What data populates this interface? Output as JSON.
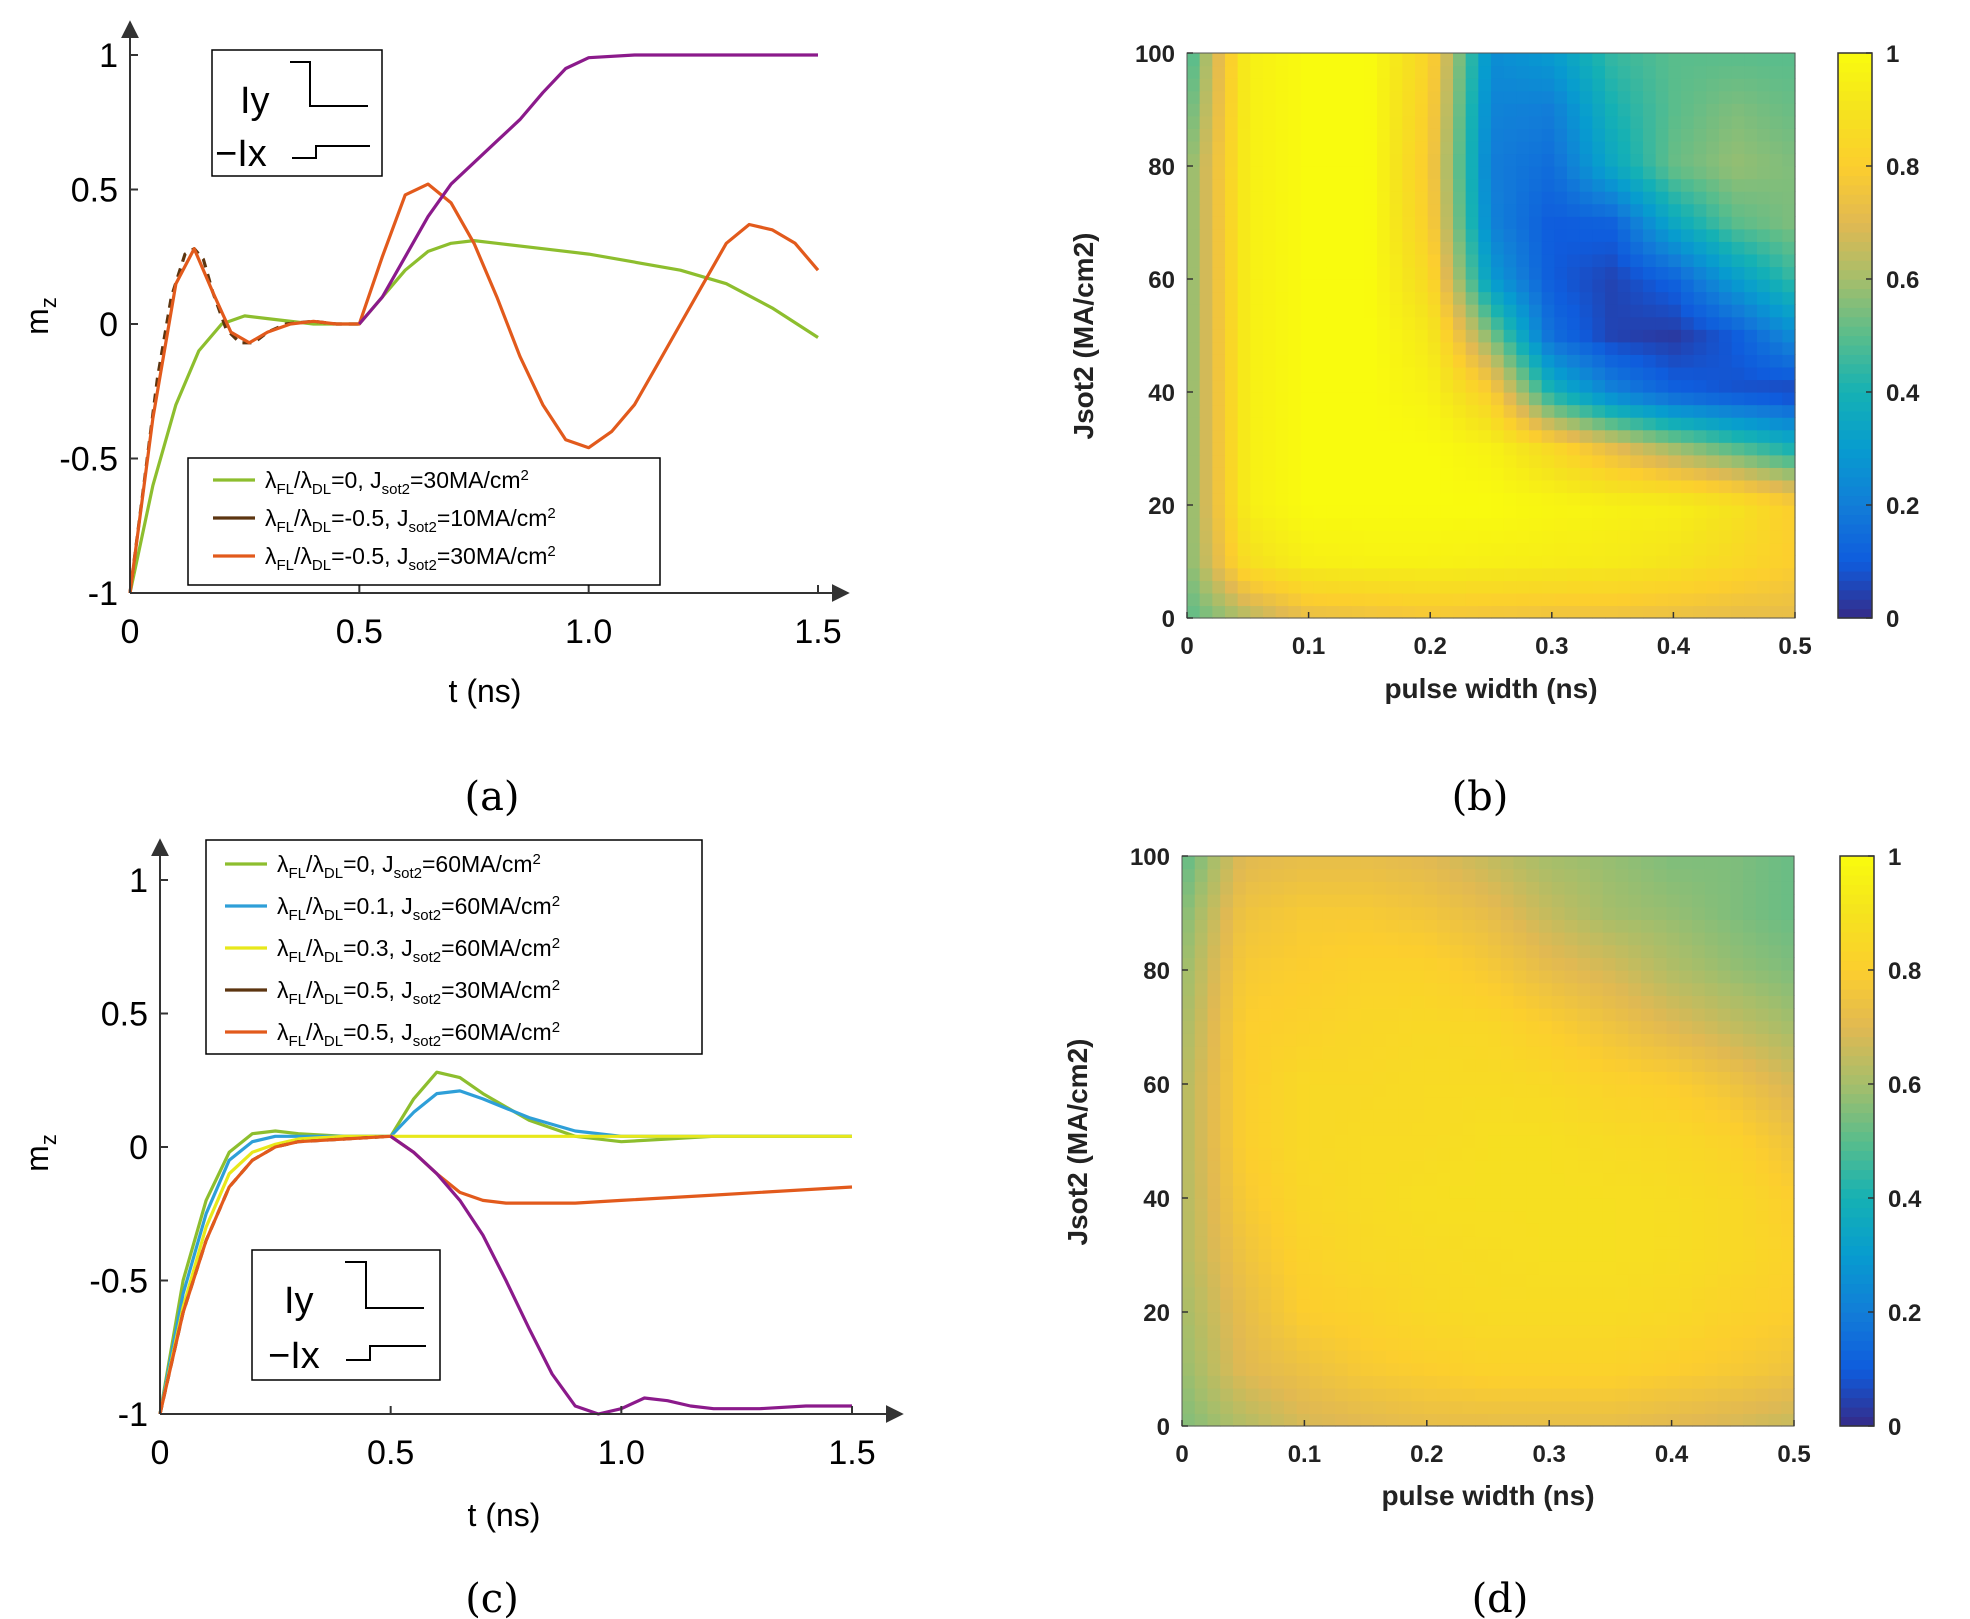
{
  "figure": {
    "panel_labels": [
      "(a)",
      "(b)",
      "(c)",
      "(d)"
    ],
    "inset": {
      "iy": "Iy",
      "ix": "−Ix"
    }
  },
  "chart_data": [
    {
      "id": "a",
      "type": "line",
      "xlabel": "t (ns)",
      "ylabel": "m",
      "ylabel_sub": "z",
      "xlim": [
        0,
        1.5
      ],
      "ylim": [
        -1,
        1
      ],
      "xticks": [
        0,
        0.5,
        1.0,
        1.5
      ],
      "xtick_labels": [
        "0",
        "0.5",
        "1.0",
        "1.5"
      ],
      "yticks": [
        -1,
        -0.5,
        0,
        0.5,
        1
      ],
      "ytick_labels": [
        "-1",
        "-0.5",
        "0",
        "0.5",
        "1"
      ],
      "legend_position": "bottom-center",
      "series": [
        {
          "name": "λFL/λDL=0,      Jsot2=30MA/cm2",
          "legend": true,
          "color": "#8DBE2E",
          "x": [
            0,
            0.05,
            0.1,
            0.15,
            0.2,
            0.25,
            0.3,
            0.4,
            0.5,
            0.55,
            0.6,
            0.65,
            0.7,
            0.75,
            0.8,
            0.9,
            1.0,
            1.1,
            1.2,
            1.3,
            1.4,
            1.5
          ],
          "y": [
            -1,
            -0.6,
            -0.3,
            -0.1,
            0.0,
            0.03,
            0.02,
            0.0,
            0.0,
            0.1,
            0.2,
            0.27,
            0.3,
            0.31,
            0.3,
            0.28,
            0.26,
            0.23,
            0.2,
            0.15,
            0.06,
            -0.05
          ]
        },
        {
          "name": "λFL/λDL=-0.5, Jsot2=10MA/cm2",
          "legend": true,
          "color": "#5C3510",
          "x": [
            0,
            0.03,
            0.06,
            0.09,
            0.12,
            0.14,
            0.16,
            0.18,
            0.21,
            0.24,
            0.27,
            0.3,
            0.34,
            0.4,
            0.45,
            0.5
          ],
          "y": [
            -1,
            -0.6,
            -0.2,
            0.1,
            0.26,
            0.28,
            0.24,
            0.12,
            -0.02,
            -0.07,
            -0.07,
            -0.03,
            0.0,
            0.01,
            0.0,
            0.0
          ]
        },
        {
          "name": "λFL/λDL=-0.5, Jsot2=30MA/cm2",
          "legend": true,
          "color": "#E25A1C",
          "x": [
            0,
            0.05,
            0.1,
            0.14,
            0.18,
            0.22,
            0.26,
            0.3,
            0.35,
            0.4,
            0.45,
            0.5,
            0.55,
            0.6,
            0.65,
            0.7,
            0.75,
            0.8,
            0.85,
            0.9,
            0.95,
            1.0,
            1.05,
            1.1,
            1.15,
            1.2,
            1.25,
            1.3,
            1.35,
            1.4,
            1.45,
            1.5
          ],
          "y": [
            -1,
            -0.35,
            0.15,
            0.28,
            0.12,
            -0.03,
            -0.07,
            -0.03,
            0.0,
            0.01,
            0.0,
            0.0,
            0.25,
            0.48,
            0.52,
            0.45,
            0.3,
            0.1,
            -0.12,
            -0.3,
            -0.43,
            -0.46,
            -0.4,
            -0.3,
            -0.15,
            0.0,
            0.15,
            0.3,
            0.37,
            0.35,
            0.3,
            0.2
          ]
        },
        {
          "name": "purple",
          "legend": false,
          "color": "#8B1A8B",
          "x": [
            0.5,
            0.55,
            0.6,
            0.65,
            0.7,
            0.75,
            0.8,
            0.85,
            0.9,
            0.95,
            1.0,
            1.1,
            1.2,
            1.3,
            1.4,
            1.5
          ],
          "y": [
            0.0,
            0.1,
            0.25,
            0.4,
            0.52,
            0.6,
            0.68,
            0.76,
            0.86,
            0.95,
            0.99,
            1.0,
            1.0,
            1.0,
            1.0,
            1.0
          ]
        }
      ]
    },
    {
      "id": "b",
      "type": "heatmap",
      "xlabel": "pulse width (ns)",
      "ylabel": "Jsot2 (MA/cm2)",
      "xlim": [
        0,
        0.5
      ],
      "ylim": [
        0,
        100
      ],
      "clim": [
        0,
        1
      ],
      "xticks": [
        0,
        0.1,
        0.2,
        0.3,
        0.4,
        0.5
      ],
      "xtick_labels": [
        "0",
        "0.1",
        "0.2",
        "0.3",
        "0.4",
        "0.5"
      ],
      "yticks": [
        0,
        20,
        40,
        60,
        80,
        100
      ],
      "ytick_labels": [
        "0",
        "20",
        "40",
        "60",
        "80",
        "100"
      ],
      "colorbar_ticks": [
        0,
        0.2,
        0.4,
        0.6,
        0.8,
        1
      ],
      "colorbar_labels": [
        "0",
        "0.2",
        "0.4",
        "0.6",
        "0.8",
        "1"
      ],
      "x_grid": [
        0,
        0.05,
        0.1,
        0.15,
        0.2,
        0.25,
        0.3,
        0.35,
        0.4,
        0.45,
        0.5
      ],
      "y_grid": [
        0,
        10,
        20,
        30,
        40,
        50,
        60,
        70,
        80,
        90,
        100
      ],
      "values": [
        [
          0.5,
          0.62,
          0.72,
          0.74,
          0.76,
          0.75,
          0.74,
          0.74,
          0.73,
          0.72,
          0.72
        ],
        [
          0.55,
          0.88,
          0.95,
          0.96,
          0.96,
          0.95,
          0.94,
          0.93,
          0.9,
          0.85,
          0.8
        ],
        [
          0.55,
          0.95,
          1.0,
          1.0,
          1.0,
          1.0,
          0.98,
          0.96,
          0.95,
          0.9,
          0.8
        ],
        [
          0.55,
          0.95,
          1.0,
          1.0,
          1.0,
          0.96,
          0.85,
          0.72,
          0.6,
          0.5,
          0.4
        ],
        [
          0.55,
          0.95,
          1.0,
          1.0,
          0.96,
          0.8,
          0.4,
          0.22,
          0.12,
          0.08,
          0.05
        ],
        [
          0.55,
          0.95,
          1.0,
          1.0,
          0.92,
          0.55,
          0.15,
          0.05,
          0.03,
          0.1,
          0.25
        ],
        [
          0.55,
          0.95,
          1.0,
          1.0,
          0.85,
          0.3,
          0.1,
          0.05,
          0.12,
          0.3,
          0.45
        ],
        [
          0.55,
          0.95,
          1.0,
          1.0,
          0.8,
          0.22,
          0.1,
          0.12,
          0.35,
          0.5,
          0.55
        ],
        [
          0.55,
          0.95,
          1.0,
          1.0,
          0.78,
          0.2,
          0.15,
          0.35,
          0.52,
          0.58,
          0.55
        ],
        [
          0.5,
          0.95,
          1.0,
          1.0,
          0.8,
          0.22,
          0.2,
          0.4,
          0.5,
          0.55,
          0.52
        ],
        [
          0.45,
          0.95,
          1.0,
          1.0,
          0.82,
          0.25,
          0.3,
          0.45,
          0.5,
          0.5,
          0.5
        ]
      ]
    },
    {
      "id": "c",
      "type": "line",
      "xlabel": "t (ns)",
      "ylabel": "m",
      "ylabel_sub": "z",
      "xlim": [
        0,
        1.5
      ],
      "ylim": [
        -1,
        1
      ],
      "xticks": [
        0,
        0.5,
        1.0,
        1.5
      ],
      "xtick_labels": [
        "0",
        "0.5",
        "1.0",
        "1.5"
      ],
      "yticks": [
        -1,
        -0.5,
        0,
        0.5,
        1
      ],
      "ytick_labels": [
        "-1",
        "-0.5",
        "0",
        "0.5",
        "1"
      ],
      "legend_position": "top-center",
      "series": [
        {
          "name": "λFL/λDL=0,     Jsot2=60MA/cm2",
          "legend": true,
          "color": "#8DBE2E",
          "x": [
            0,
            0.05,
            0.1,
            0.15,
            0.2,
            0.25,
            0.3,
            0.4,
            0.5,
            0.55,
            0.6,
            0.65,
            0.7,
            0.8,
            0.9,
            1.0,
            1.1,
            1.2,
            1.5
          ],
          "y": [
            -1,
            -0.5,
            -0.2,
            -0.02,
            0.05,
            0.06,
            0.05,
            0.04,
            0.04,
            0.18,
            0.28,
            0.26,
            0.2,
            0.1,
            0.04,
            0.02,
            0.03,
            0.04,
            0.04
          ]
        },
        {
          "name": "λFL/λDL=0.1, Jsot2=60MA/cm2",
          "legend": true,
          "color": "#2E9FD8",
          "x": [
            0,
            0.05,
            0.1,
            0.15,
            0.2,
            0.25,
            0.3,
            0.4,
            0.5,
            0.55,
            0.6,
            0.65,
            0.7,
            0.8,
            0.9,
            1.0,
            1.1,
            1.5
          ],
          "y": [
            -1,
            -0.55,
            -0.25,
            -0.05,
            0.02,
            0.04,
            0.04,
            0.04,
            0.04,
            0.13,
            0.2,
            0.21,
            0.18,
            0.11,
            0.06,
            0.04,
            0.04,
            0.04
          ]
        },
        {
          "name": "λFL/λDL=0.3, Jsot2=60MA/cm2",
          "legend": true,
          "color": "#E8E81A",
          "x": [
            0,
            0.05,
            0.1,
            0.15,
            0.2,
            0.25,
            0.3,
            0.4,
            0.5,
            1.0,
            1.5
          ],
          "y": [
            -1,
            -0.6,
            -0.3,
            -0.1,
            -0.02,
            0.01,
            0.03,
            0.04,
            0.04,
            0.04,
            0.04
          ]
        },
        {
          "name": "λFL/λDL=0.5, Jsot2=30MA/cm2",
          "legend": true,
          "color": "#5C3510",
          "x": [
            0,
            0.05,
            0.1,
            0.15,
            0.2,
            0.25,
            0.3,
            0.4,
            0.5
          ],
          "y": [
            -1,
            -0.62,
            -0.35,
            -0.15,
            -0.05,
            0.0,
            0.02,
            0.03,
            0.04
          ]
        },
        {
          "name": "λFL/λDL=0.5, Jsot2=60MA/cm2",
          "legend": true,
          "color": "#E25A1C",
          "x": [
            0,
            0.05,
            0.1,
            0.15,
            0.2,
            0.25,
            0.3,
            0.4,
            0.5,
            0.55,
            0.6,
            0.65,
            0.7,
            0.75,
            0.8,
            0.9,
            1.0,
            1.2,
            1.5
          ],
          "y": [
            -1,
            -0.62,
            -0.35,
            -0.15,
            -0.05,
            0.0,
            0.02,
            0.03,
            0.04,
            -0.02,
            -0.1,
            -0.17,
            -0.2,
            -0.21,
            -0.21,
            -0.21,
            -0.2,
            -0.18,
            -0.15
          ]
        },
        {
          "name": "purple",
          "legend": false,
          "color": "#8B1A8B",
          "x": [
            0.5,
            0.55,
            0.6,
            0.65,
            0.7,
            0.75,
            0.8,
            0.85,
            0.9,
            0.95,
            1.0,
            1.05,
            1.1,
            1.15,
            1.2,
            1.3,
            1.4,
            1.5
          ],
          "y": [
            0.04,
            -0.02,
            -0.1,
            -0.2,
            -0.33,
            -0.5,
            -0.68,
            -0.85,
            -0.97,
            -1.0,
            -0.98,
            -0.94,
            -0.95,
            -0.97,
            -0.98,
            -0.98,
            -0.97,
            -0.97
          ]
        }
      ]
    },
    {
      "id": "d",
      "type": "heatmap",
      "xlabel": "pulse width (ns)",
      "ylabel": "Jsot2 (MA/cm2)",
      "xlim": [
        0,
        0.5
      ],
      "ylim": [
        0,
        100
      ],
      "clim": [
        0,
        1
      ],
      "xticks": [
        0,
        0.1,
        0.2,
        0.3,
        0.4,
        0.5
      ],
      "xtick_labels": [
        "0",
        "0.1",
        "0.2",
        "0.3",
        "0.4",
        "0.5"
      ],
      "yticks": [
        0,
        20,
        40,
        60,
        80,
        100
      ],
      "ytick_labels": [
        "0",
        "20",
        "40",
        "60",
        "80",
        "100"
      ],
      "colorbar_ticks": [
        0,
        0.2,
        0.4,
        0.6,
        0.8,
        1
      ],
      "colorbar_labels": [
        "0",
        "0.2",
        "0.4",
        "0.6",
        "0.8",
        "1"
      ],
      "x_grid": [
        0,
        0.05,
        0.1,
        0.15,
        0.2,
        0.25,
        0.3,
        0.35,
        0.4,
        0.45,
        0.5
      ],
      "y_grid": [
        0,
        10,
        20,
        30,
        40,
        50,
        60,
        70,
        80,
        90,
        100
      ],
      "values": [
        [
          0.55,
          0.62,
          0.68,
          0.7,
          0.72,
          0.72,
          0.72,
          0.72,
          0.7,
          0.68,
          0.65
        ],
        [
          0.58,
          0.7,
          0.74,
          0.78,
          0.8,
          0.82,
          0.82,
          0.82,
          0.8,
          0.78,
          0.75
        ],
        [
          0.6,
          0.72,
          0.8,
          0.82,
          0.85,
          0.86,
          0.86,
          0.86,
          0.85,
          0.82,
          0.8
        ],
        [
          0.62,
          0.75,
          0.82,
          0.85,
          0.86,
          0.87,
          0.88,
          0.88,
          0.87,
          0.85,
          0.82
        ],
        [
          0.62,
          0.78,
          0.84,
          0.86,
          0.88,
          0.88,
          0.88,
          0.88,
          0.87,
          0.85,
          0.8
        ],
        [
          0.62,
          0.8,
          0.85,
          0.86,
          0.86,
          0.88,
          0.88,
          0.86,
          0.85,
          0.82,
          0.75
        ],
        [
          0.62,
          0.8,
          0.85,
          0.85,
          0.86,
          0.86,
          0.85,
          0.82,
          0.8,
          0.75,
          0.68
        ],
        [
          0.6,
          0.8,
          0.82,
          0.84,
          0.85,
          0.84,
          0.8,
          0.75,
          0.7,
          0.65,
          0.6
        ],
        [
          0.58,
          0.78,
          0.8,
          0.82,
          0.82,
          0.78,
          0.72,
          0.68,
          0.62,
          0.58,
          0.55
        ],
        [
          0.55,
          0.75,
          0.78,
          0.78,
          0.76,
          0.72,
          0.65,
          0.6,
          0.58,
          0.55,
          0.52
        ],
        [
          0.5,
          0.7,
          0.72,
          0.72,
          0.7,
          0.65,
          0.6,
          0.58,
          0.55,
          0.55,
          0.52
        ]
      ]
    }
  ]
}
